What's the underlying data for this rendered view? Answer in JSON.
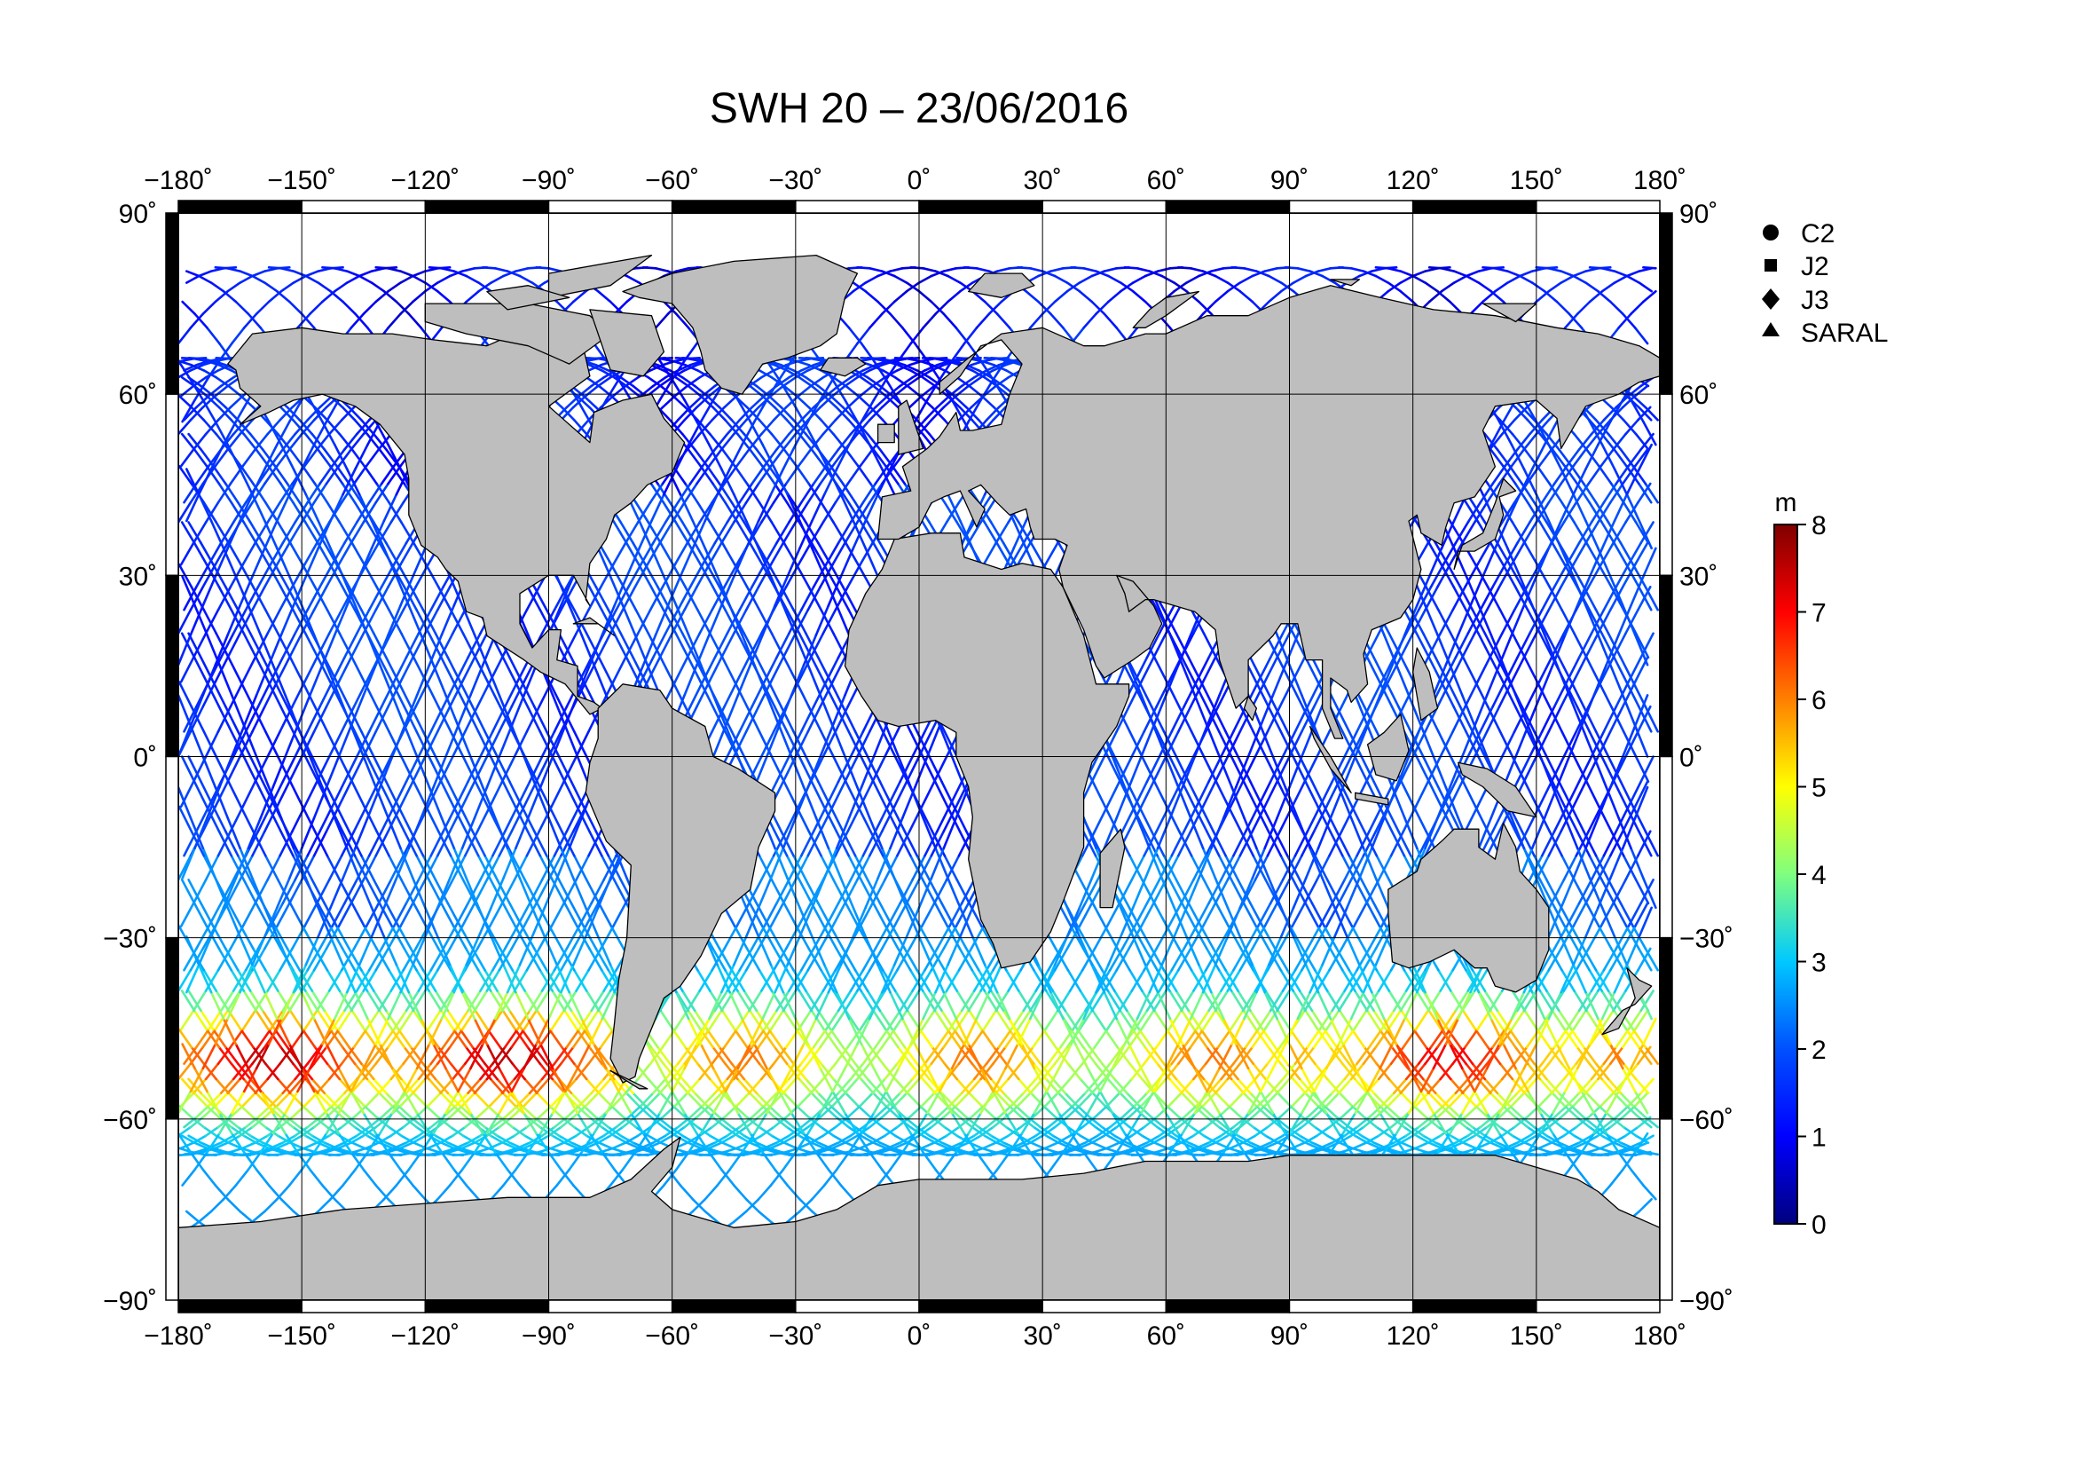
{
  "title": "SWH 20 – 23/06/2016",
  "map": {
    "ocean_color": "#ffffff",
    "land_color": "#bebebe",
    "coast_color": "#000000",
    "lon_ticks": [
      "−180˚",
      "−150˚",
      "−120˚",
      "−90˚",
      "−60˚",
      "−30˚",
      "0˚",
      "30˚",
      "60˚",
      "90˚",
      "120˚",
      "150˚",
      "180˚"
    ],
    "lat_ticks_left": [
      "90˚",
      "60˚",
      "30˚",
      "0˚",
      "−30˚",
      "−60˚",
      "−90˚"
    ],
    "lat_ticks_right": [
      "90˚",
      "60˚",
      "30˚",
      "0˚",
      "−30˚",
      "−60˚",
      "−90˚"
    ],
    "lon_range": [
      -180,
      180
    ],
    "lat_range": [
      -90,
      90
    ],
    "grid": true
  },
  "legend": {
    "items": [
      {
        "label": "C2",
        "marker": "circle"
      },
      {
        "label": "J2",
        "marker": "square"
      },
      {
        "label": "J3",
        "marker": "diamond"
      },
      {
        "label": "SARAL",
        "marker": "triangle"
      }
    ]
  },
  "colorbar": {
    "unit": "m",
    "ticks": [
      "0",
      "1",
      "2",
      "3",
      "4",
      "5",
      "6",
      "7",
      "8"
    ],
    "min": 0,
    "max": 8,
    "colors": [
      "#00007f",
      "#0000ff",
      "#007fff",
      "#00ffff",
      "#7fff7f",
      "#ffff00",
      "#ff7f00",
      "#ff0000",
      "#7f0000"
    ]
  },
  "chart_data": {
    "type": "scatter",
    "title": "SWH 20 – 23/06/2016",
    "xlabel": "",
    "ylabel": "",
    "xlim": [
      -180,
      180
    ],
    "ylim": [
      -90,
      90
    ],
    "value_unit": "m",
    "value_range": [
      0,
      8
    ],
    "series": [
      {
        "name": "C2",
        "marker": "circle"
      },
      {
        "name": "J2",
        "marker": "square"
      },
      {
        "name": "J3",
        "marker": "diamond"
      },
      {
        "name": "SARAL",
        "marker": "triangle"
      }
    ],
    "swh_by_region": [
      {
        "lat_band": [
          50,
          82
        ],
        "lon_band": [
          -180,
          180
        ],
        "swh_range": [
          0.5,
          3.0
        ]
      },
      {
        "lat_band": [
          -30,
          50
        ],
        "lon_band": [
          -180,
          180
        ],
        "swh_range": [
          1.0,
          3.0
        ]
      },
      {
        "lat_band": [
          -66,
          -30
        ],
        "lon_band": [
          -180,
          -60
        ],
        "swh_range": [
          3.0,
          8.0
        ]
      },
      {
        "lat_band": [
          -66,
          -30
        ],
        "lon_band": [
          -60,
          100
        ],
        "swh_range": [
          2.5,
          6.5
        ]
      },
      {
        "lat_band": [
          -66,
          -30
        ],
        "lon_band": [
          100,
          180
        ],
        "swh_range": [
          3.0,
          7.5
        ]
      }
    ]
  }
}
